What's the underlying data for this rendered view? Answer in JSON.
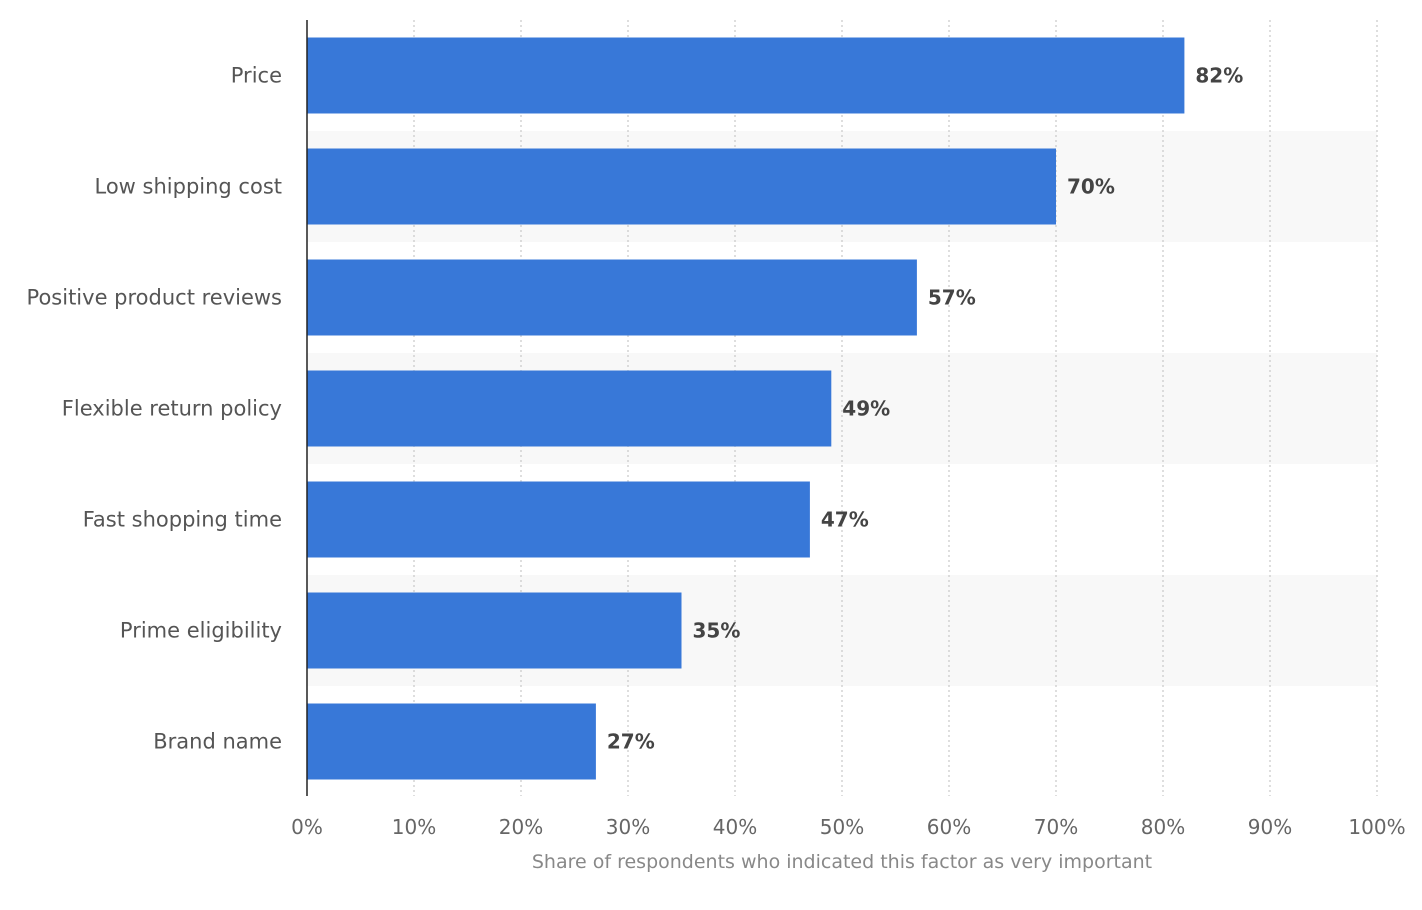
{
  "chart_data": {
    "type": "bar",
    "orientation": "horizontal",
    "categories": [
      "Price",
      "Low shipping cost",
      "Positive product reviews",
      "Flexible return policy",
      "Fast shopping time",
      "Prime eligibility",
      "Brand name"
    ],
    "values": [
      82,
      70,
      57,
      49,
      47,
      35,
      27
    ],
    "value_labels": [
      "82%",
      "70%",
      "57%",
      "49%",
      "47%",
      "35%",
      "27%"
    ],
    "xlabel": "Share of respondents who indicated this factor as very important",
    "ylabel": "",
    "xlim": [
      0,
      100
    ],
    "xticks": [
      0,
      10,
      20,
      30,
      40,
      50,
      60,
      70,
      80,
      90,
      100
    ],
    "xtick_labels": [
      "0%",
      "10%",
      "20%",
      "30%",
      "40%",
      "50%",
      "60%",
      "70%",
      "80%",
      "90%",
      "100%"
    ],
    "grid": true,
    "bar_color": "#3878d8",
    "band_color": "#f8f8f8"
  }
}
